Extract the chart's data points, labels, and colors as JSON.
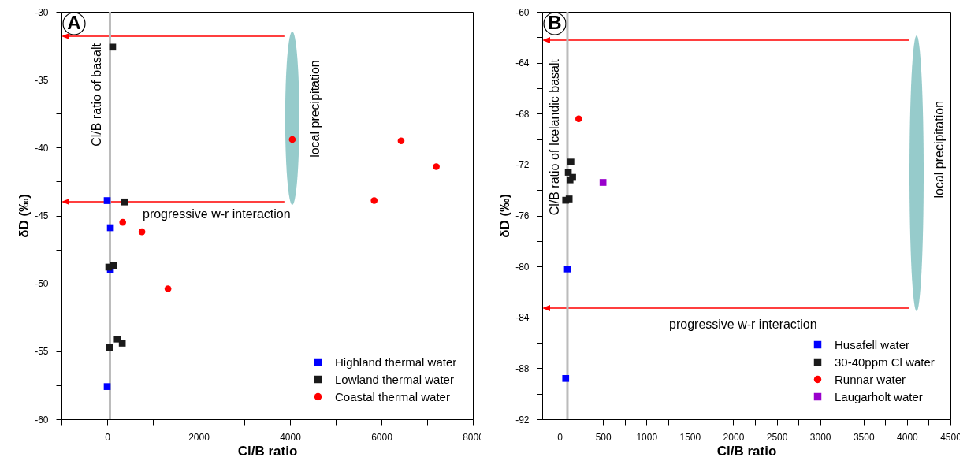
{
  "chart_data": [
    {
      "type": "scatter",
      "xlabel": "Cl/B ratio",
      "ylabel": "δD (‰)",
      "legend": "bottom right",
      "xlim": [
        -1000,
        8000
      ],
      "xticks": [
        {
          "value": -1000,
          "label": null
        },
        0,
        {
          "value": 1000,
          "label": null
        },
        2000,
        {
          "value": 3000,
          "label": null
        },
        4000,
        {
          "value": 5000,
          "label": null
        },
        6000,
        {
          "value": 7000,
          "label": null
        },
        8000
      ],
      "ylim": [
        -60,
        -30
      ],
      "yticks": [
        -30,
        {
          "value": -32.5,
          "label": null
        },
        -35,
        {
          "value": -37.5,
          "label": null
        },
        -40,
        {
          "value": -42.5,
          "label": null
        },
        -45,
        {
          "value": -47.5,
          "label": null
        },
        -50,
        {
          "value": -52.5,
          "label": null
        },
        -55,
        {
          "value": -57.5,
          "label": null
        },
        -60
      ],
      "series": [
        {
          "name": "Highland thermal water",
          "color": "#0000ff",
          "marker": "square",
          "x": [
            0,
            70,
            70,
            0
          ],
          "values": [
            -43.9,
            -45.9,
            -49.0,
            -57.6
          ]
        },
        {
          "name": "Lowland thermal water",
          "color": "#1a1a1a",
          "marker": "square",
          "x": [
            120,
            380,
            35,
            140,
            50,
            220,
            330
          ],
          "values": [
            -32.6,
            -44.0,
            -48.8,
            -48.7,
            -54.7,
            -54.1,
            -54.4
          ]
        },
        {
          "name": "Coastal thermal water",
          "color": "#ff0000",
          "marker": "circle",
          "x": [
            4050,
            6430,
            7200,
            5840,
            340,
            760,
            1330
          ],
          "values": [
            -39.4,
            -39.5,
            -41.4,
            -43.9,
            -45.5,
            -46.2,
            -50.4
          ]
        }
      ],
      "ref_lines": [
        {
          "axis": "x",
          "value": 60,
          "label": "Cl/B ratio of basalt",
          "color": "#bbbbbb"
        }
      ],
      "annotations": [
        "A",
        "progressive w-r interaction",
        "local precipitation"
      ]
    },
    {
      "type": "scatter",
      "xlabel": "Cl/B ratio",
      "ylabel": "δD (‰)",
      "legend": "bottom right",
      "xlim": [
        -200,
        4500
      ],
      "xticks": [
        0,
        {
          "value": 250,
          "label": null
        },
        500,
        {
          "value": 750,
          "label": null
        },
        1000,
        {
          "value": 1250,
          "label": null
        },
        1500,
        {
          "value": 1750,
          "label": null
        },
        2000,
        {
          "value": 2250,
          "label": null
        },
        2500,
        {
          "value": 2750,
          "label": null
        },
        3000,
        {
          "value": 3250,
          "label": null
        },
        3500,
        {
          "value": 3750,
          "label": null
        },
        4000,
        {
          "value": 4250,
          "label": null
        },
        4500
      ],
      "ylim": [
        -92,
        -60
      ],
      "yticks": [
        -60,
        {
          "value": -62,
          "label": null
        },
        -64,
        {
          "value": -66,
          "label": null
        },
        -68,
        {
          "value": -70,
          "label": null
        },
        -72,
        {
          "value": -74,
          "label": null
        },
        -76,
        {
          "value": -78,
          "label": null
        },
        -80,
        {
          "value": -82,
          "label": null
        },
        -84,
        {
          "value": -86,
          "label": null
        },
        -88,
        {
          "value": -90,
          "label": null
        },
        -92
      ],
      "series": [
        {
          "name": "Husafell water",
          "color": "#0000ff",
          "marker": "square",
          "x": [
            90,
            70
          ],
          "values": [
            -80.2,
            -88.8
          ]
        },
        {
          "name": "30-40ppm Cl water",
          "color": "#1a1a1a",
          "marker": "square",
          "x": [
            130,
            100,
            150,
            120,
            110,
            70
          ],
          "values": [
            -71.8,
            -72.6,
            -73.0,
            -73.2,
            -74.7,
            -74.8
          ]
        },
        {
          "name": "Runnar water",
          "color": "#ff0000",
          "marker": "circle",
          "x": [
            220
          ],
          "values": [
            -68.4
          ]
        },
        {
          "name": "Laugarholt water",
          "color": "#9900cc",
          "marker": "square",
          "x": [
            500
          ],
          "values": [
            -73.4
          ]
        }
      ],
      "ref_lines": [
        {
          "axis": "x",
          "value": 90,
          "label": "Cl/B ratio of Icelandic basalt",
          "color": "#bbbbbb"
        }
      ],
      "annotations": [
        "B",
        "progressive w-r interaction",
        "local precipitation"
      ]
    }
  ]
}
